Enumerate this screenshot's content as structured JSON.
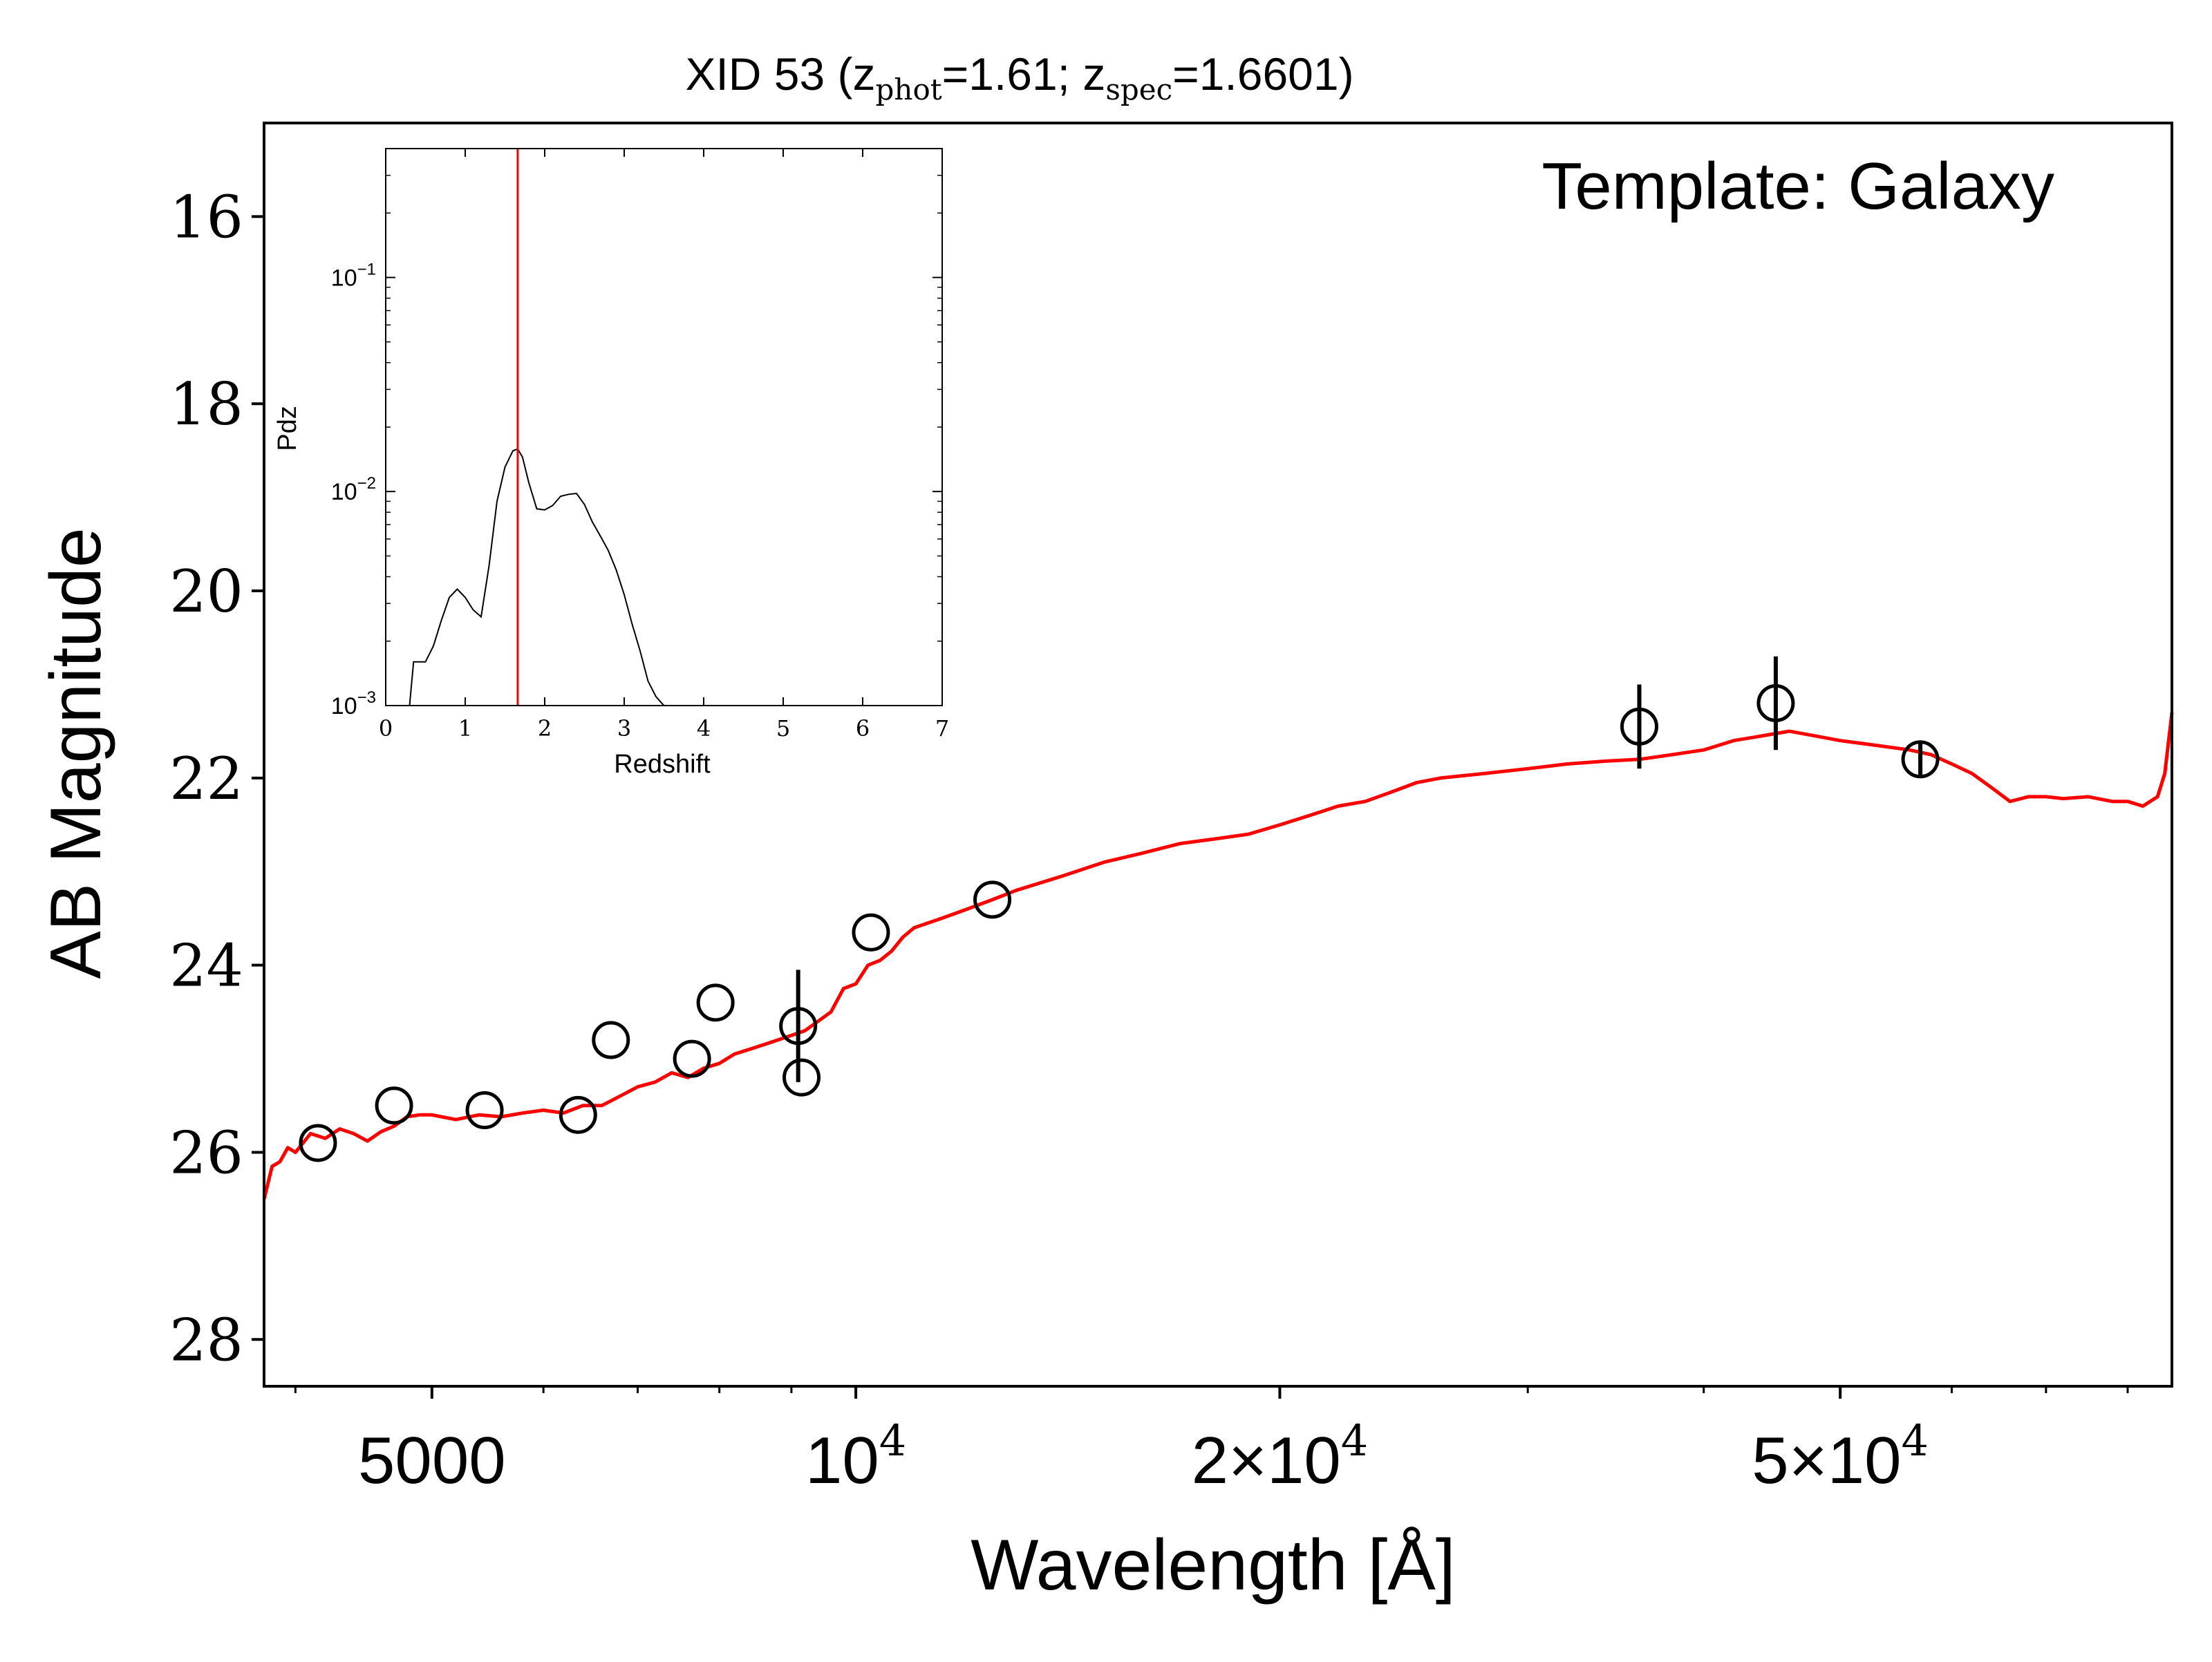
{
  "chart_data": {
    "type": "scatter",
    "title": {
      "prefix": "XID 53 (z",
      "sub1": "phot",
      "mid": "=1.61; z",
      "sub2": "spec",
      "suffix": "=1.6601)"
    },
    "annotation": "Template: Galaxy",
    "xlabel": "Wavelength [Å]",
    "ylabel": "AB Magnitude",
    "xscale": "log",
    "xlim": [
      3800,
      86000
    ],
    "ylim": [
      28.5,
      15.0
    ],
    "y_inverted": true,
    "x_ticks": [
      {
        "value": 5000,
        "base": "5000",
        "exp": ""
      },
      {
        "value": 10000,
        "base": "10",
        "exp": "4"
      },
      {
        "value": 20000,
        "base": "2×10",
        "exp": "4"
      },
      {
        "value": 50000,
        "base": "5×10",
        "exp": "4"
      }
    ],
    "y_ticks": [
      16,
      18,
      20,
      22,
      24,
      26,
      28
    ],
    "grid": false,
    "colors": {
      "template": "#ff0000",
      "points": "#000000",
      "zspec_line": "#ff0000"
    },
    "series": [
      {
        "kind": "template_line",
        "x": [
          3800,
          3850,
          3900,
          3950,
          4000,
          4100,
          4200,
          4300,
          4400,
          4500,
          4600,
          4700,
          4800,
          4900,
          5000,
          5200,
          5400,
          5600,
          5800,
          6000,
          6200,
          6400,
          6600,
          6800,
          7000,
          7200,
          7400,
          7600,
          7800,
          8000,
          8200,
          8400,
          8600,
          8800,
          9000,
          9200,
          9400,
          9600,
          9800,
          10000,
          10200,
          10400,
          10600,
          10800,
          11000,
          11500,
          12000,
          12500,
          13000,
          14000,
          15000,
          16000,
          17000,
          18000,
          19000,
          20000,
          21000,
          22000,
          23000,
          24000,
          25000,
          26000,
          28000,
          30000,
          32000,
          34000,
          36000,
          38000,
          40000,
          42000,
          44000,
          46000,
          48000,
          50000,
          53000,
          56000,
          58000,
          60000,
          62000,
          64000,
          66000,
          68000,
          70000,
          72000,
          75000,
          78000,
          80000,
          82000,
          84000,
          85000,
          86000
        ],
        "y": [
          26.5,
          26.15,
          26.1,
          25.95,
          26.0,
          25.8,
          25.85,
          25.75,
          25.8,
          25.88,
          25.78,
          25.72,
          25.62,
          25.6,
          25.6,
          25.65,
          25.6,
          25.62,
          25.58,
          25.55,
          25.58,
          25.5,
          25.5,
          25.4,
          25.3,
          25.25,
          25.15,
          25.2,
          25.1,
          25.05,
          24.95,
          24.9,
          24.85,
          24.8,
          24.75,
          24.7,
          24.6,
          24.5,
          24.25,
          24.2,
          24.0,
          23.95,
          23.85,
          23.7,
          23.6,
          23.5,
          23.4,
          23.3,
          23.2,
          23.05,
          22.9,
          22.8,
          22.7,
          22.65,
          22.6,
          22.5,
          22.4,
          22.3,
          22.25,
          22.15,
          22.05,
          22.0,
          21.95,
          21.9,
          21.85,
          21.82,
          21.8,
          21.75,
          21.7,
          21.6,
          21.55,
          21.5,
          21.55,
          21.6,
          21.65,
          21.7,
          21.75,
          21.85,
          21.95,
          22.1,
          22.25,
          22.2,
          22.2,
          22.22,
          22.2,
          22.25,
          22.25,
          22.3,
          22.2,
          21.95,
          21.3
        ]
      },
      {
        "kind": "photometry",
        "points": [
          {
            "x": 4150,
            "y": 25.9,
            "err": 0.1
          },
          {
            "x": 4700,
            "y": 25.5,
            "err": 0.1
          },
          {
            "x": 5450,
            "y": 25.55,
            "err": 0.1
          },
          {
            "x": 6350,
            "y": 25.6,
            "err": 0.1
          },
          {
            "x": 6700,
            "y": 24.8,
            "err": 0.1
          },
          {
            "x": 7650,
            "y": 25.0,
            "err": 0.1
          },
          {
            "x": 7950,
            "y": 24.4,
            "err": 0.1
          },
          {
            "x": 9100,
            "y": 24.65,
            "err": 0.6
          },
          {
            "x": 9150,
            "y": 25.2,
            "err": 0.1
          },
          {
            "x": 10250,
            "y": 23.65,
            "err": 0.1
          },
          {
            "x": 12500,
            "y": 23.3,
            "err": 0.1
          },
          {
            "x": 36000,
            "y": 21.45,
            "err": 0.45
          },
          {
            "x": 45000,
            "y": 21.2,
            "err": 0.5
          },
          {
            "x": 57000,
            "y": 21.8,
            "err": 0.2
          }
        ]
      }
    ],
    "inset": {
      "type": "line",
      "xlabel": "Redshift",
      "ylabel": "Pdz",
      "xscale": "linear",
      "yscale": "log",
      "xlim": [
        0,
        7
      ],
      "ylim": [
        0.001,
        0.4
      ],
      "x_ticks": [
        0,
        1,
        2,
        3,
        4,
        5,
        6,
        7
      ],
      "y_ticks": [
        {
          "value": 0.1,
          "base": "10",
          "exp": "−1"
        },
        {
          "value": 0.01,
          "base": "10",
          "exp": "−2"
        },
        {
          "value": 0.001,
          "base": "10",
          "exp": "−3"
        }
      ],
      "z_spec_marker": 1.66,
      "pdz": {
        "x": [
          0.3,
          0.35,
          0.4,
          0.5,
          0.6,
          0.7,
          0.8,
          0.9,
          1.0,
          1.1,
          1.2,
          1.3,
          1.4,
          1.5,
          1.6,
          1.66,
          1.72,
          1.8,
          1.9,
          2.0,
          2.1,
          2.2,
          2.3,
          2.4,
          2.5,
          2.6,
          2.7,
          2.8,
          2.9,
          3.0,
          3.1,
          3.2,
          3.3,
          3.4,
          3.5,
          3.55
        ],
        "y": [
          0.001,
          0.0016,
          0.0016,
          0.0016,
          0.0019,
          0.0025,
          0.0032,
          0.0035,
          0.0032,
          0.0028,
          0.0026,
          0.0045,
          0.009,
          0.013,
          0.0155,
          0.0158,
          0.0145,
          0.011,
          0.0083,
          0.0082,
          0.0086,
          0.0095,
          0.0097,
          0.0098,
          0.0087,
          0.0072,
          0.0062,
          0.0053,
          0.0043,
          0.0033,
          0.0024,
          0.0018,
          0.0013,
          0.0011,
          0.001,
          0.001
        ]
      }
    }
  }
}
